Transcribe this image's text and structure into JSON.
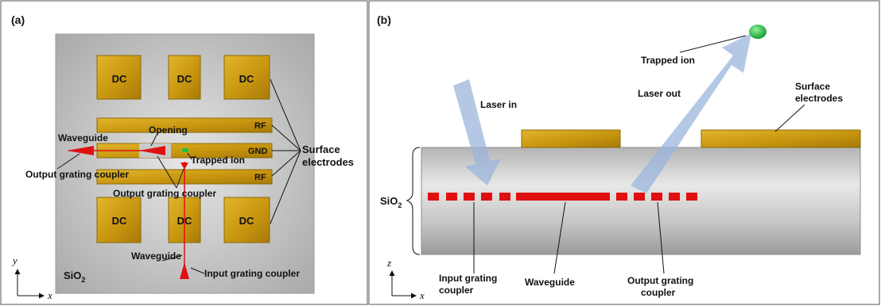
{
  "panel_a": {
    "tag": "(a)",
    "dc_labels": [
      "DC",
      "DC",
      "DC",
      "DC",
      "DC",
      "DC"
    ],
    "rf_top": "RF",
    "gnd": "GND",
    "rf_bottom": "RF",
    "opening": "Opening",
    "waveguide_top": "Waveguide",
    "trapped_ion": "Trapped ion",
    "output_coupler_1": "Output grating coupler",
    "output_coupler_2": "Output grating coupler",
    "surface_electrodes_1": "Surface",
    "surface_electrodes_2": "electrodes",
    "waveguide_bottom": "Waveguide",
    "input_coupler": "Input grating coupler",
    "substrate": "SiO",
    "substrate_sub": "2",
    "axis_y": "y",
    "axis_x": "x"
  },
  "panel_b": {
    "tag": "(b)",
    "trapped_ion": "Trapped ion",
    "laser_in": "Laser in",
    "laser_out": "Laser out",
    "surface_electrodes_1": "Surface",
    "surface_electrodes_2": "electrodes",
    "substrate": "SiO",
    "substrate_sub": "2",
    "input_coupler_1": "Input grating",
    "input_coupler_2": "coupler",
    "waveguide": "Waveguide",
    "output_coupler_1": "Output grating",
    "output_coupler_2": "coupler",
    "axis_z": "z",
    "axis_x": "x"
  }
}
